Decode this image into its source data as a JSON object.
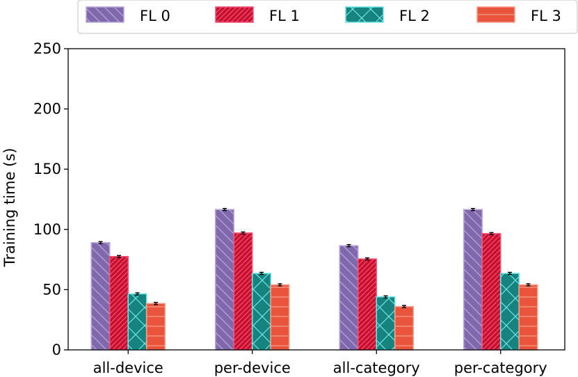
{
  "chart_data": {
    "type": "bar",
    "categories": [
      "all-device",
      "per-device",
      "all-category",
      "per-category"
    ],
    "series": [
      {
        "name": "FL 0",
        "values": [
          89,
          116.5,
          86.5,
          116.5
        ],
        "color": "#8068ad",
        "edge": "#b9a9d9",
        "hatch": "backslash"
      },
      {
        "name": "FL 1",
        "values": [
          77.5,
          97,
          75.5,
          96.5
        ],
        "color": "#c8102e",
        "edge": "#f2557a",
        "hatch": "slash"
      },
      {
        "name": "FL 2",
        "values": [
          46.5,
          63.5,
          44,
          63.5
        ],
        "color": "#17837f",
        "edge": "#6ee4e4",
        "hatch": "cross"
      },
      {
        "name": "FL 3",
        "values": [
          38.5,
          54,
          36,
          54
        ],
        "color": "#e8543c",
        "edge": "#f5a08e",
        "hatch": "horizontal"
      }
    ],
    "title": "",
    "xlabel": "",
    "ylabel": "Training time (s)",
    "ylim": [
      0,
      250
    ],
    "yticks": [
      0,
      50,
      100,
      150,
      200,
      250
    ],
    "grid": false,
    "legend_position": "top",
    "error_bars": true
  }
}
